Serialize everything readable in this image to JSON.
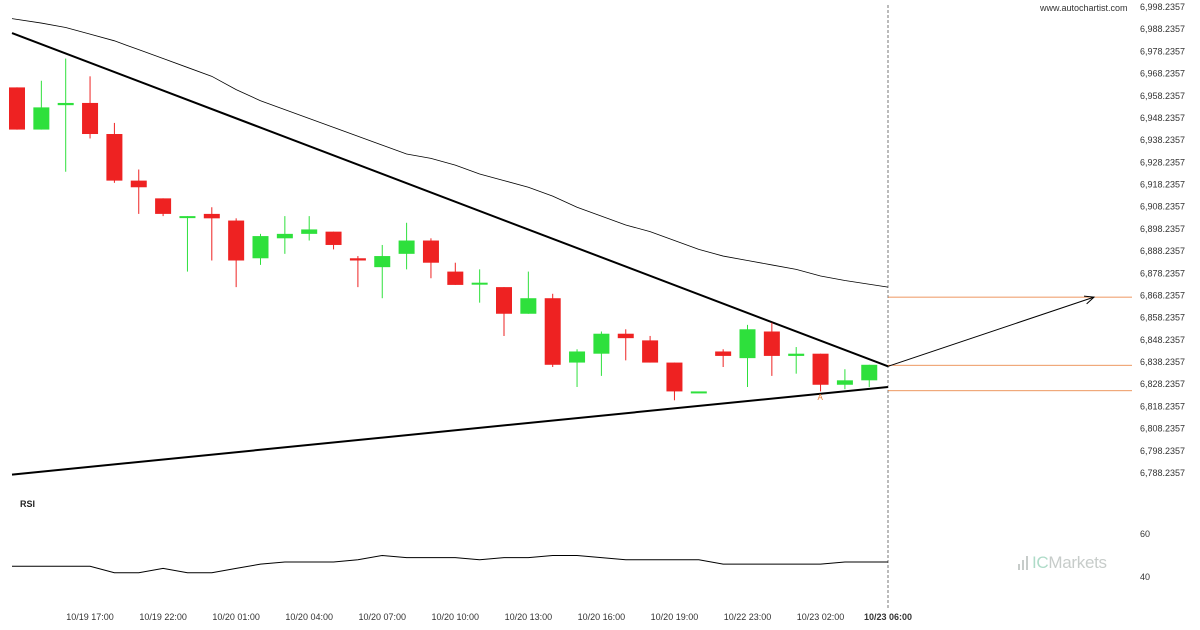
{
  "header": {
    "site": "www.autochartist.com"
  },
  "price_axis_labels": [
    "6,998.2357",
    "6,988.2357",
    "6,978.2357",
    "6,968.2357",
    "6,958.2357",
    "6,948.2357",
    "6,938.2357",
    "6,928.2357",
    "6,918.2357",
    "6,908.2357",
    "6,898.2357",
    "6,888.2357",
    "6,878.2357",
    "6,868.2357",
    "6,858.2357",
    "6,848.2357",
    "6,838.2357",
    "6,828.2357",
    "6,818.2357",
    "6,808.2357",
    "6,798.2357",
    "6,788.2357"
  ],
  "time_labels": [
    "10/19 17:00",
    "10/19 22:00",
    "10/20 01:00",
    "10/20 04:00",
    "10/20 07:00",
    "10/20 10:00",
    "10/20 13:00",
    "10/20 16:00",
    "10/20 19:00",
    "10/22 23:00",
    "10/23 02:00",
    "10/23 06:00"
  ],
  "rsi": {
    "label": "RSI",
    "levels": [
      "60",
      "40"
    ]
  },
  "pattern_point_label": "A",
  "brand": {
    "prefix": "IC",
    "suffix": "Markets"
  },
  "colors": {
    "up": "#2ee03c",
    "down": "#ee2222",
    "forecast": "#e8762c",
    "line": "#000000",
    "background": "#ffffff"
  },
  "chart_data": {
    "type": "candlestick",
    "title": "",
    "price_range": [
      6788.2357,
      6998.2357
    ],
    "candles": [
      {
        "o": 6962,
        "h": 6962,
        "l": 6943,
        "c": 6943
      },
      {
        "o": 6943,
        "h": 6965,
        "l": 6943,
        "c": 6953
      },
      {
        "o": 6954,
        "h": 6975,
        "l": 6924,
        "c": 6955
      },
      {
        "o": 6955,
        "h": 6967,
        "l": 6939,
        "c": 6941
      },
      {
        "o": 6941,
        "h": 6946,
        "l": 6919,
        "c": 6920
      },
      {
        "o": 6920,
        "h": 6925,
        "l": 6905,
        "c": 6917
      },
      {
        "o": 6912,
        "h": 6912,
        "l": 6904,
        "c": 6905
      },
      {
        "o": 6904,
        "h": 6904,
        "l": 6879,
        "c": 6904
      },
      {
        "o": 6905,
        "h": 6908,
        "l": 6884,
        "c": 6903
      },
      {
        "o": 6902,
        "h": 6903,
        "l": 6872,
        "c": 6884
      },
      {
        "o": 6885,
        "h": 6896,
        "l": 6882,
        "c": 6895
      },
      {
        "o": 6894,
        "h": 6904,
        "l": 6887,
        "c": 6896
      },
      {
        "o": 6896,
        "h": 6904,
        "l": 6893,
        "c": 6898
      },
      {
        "o": 6897,
        "h": 6897,
        "l": 6889,
        "c": 6891
      },
      {
        "o": 6885,
        "h": 6886,
        "l": 6872,
        "c": 6884
      },
      {
        "o": 6881,
        "h": 6891,
        "l": 6867,
        "c": 6886
      },
      {
        "o": 6887,
        "h": 6901,
        "l": 6880,
        "c": 6893
      },
      {
        "o": 6893,
        "h": 6894,
        "l": 6876,
        "c": 6883
      },
      {
        "o": 6879,
        "h": 6883,
        "l": 6873,
        "c": 6873
      },
      {
        "o": 6874,
        "h": 6880,
        "l": 6865,
        "c": 6874
      },
      {
        "o": 6872,
        "h": 6872,
        "l": 6850,
        "c": 6860
      },
      {
        "o": 6860,
        "h": 6879,
        "l": 6860,
        "c": 6867
      },
      {
        "o": 6867,
        "h": 6869,
        "l": 6836,
        "c": 6837
      },
      {
        "o": 6838,
        "h": 6844,
        "l": 6827,
        "c": 6843
      },
      {
        "o": 6842,
        "h": 6852,
        "l": 6832,
        "c": 6851
      },
      {
        "o": 6851,
        "h": 6853,
        "l": 6839,
        "c": 6849
      },
      {
        "o": 6848,
        "h": 6850,
        "l": 6838,
        "c": 6838
      },
      {
        "o": 6838,
        "h": 6838,
        "l": 6821,
        "c": 6825
      },
      {
        "o": 6825,
        "h": 6825,
        "l": 6825,
        "c": 6825
      },
      {
        "o": 6843,
        "h": 6844,
        "l": 6836,
        "c": 6841
      },
      {
        "o": 6840,
        "h": 6855,
        "l": 6827,
        "c": 6853
      },
      {
        "o": 6852,
        "h": 6856,
        "l": 6832,
        "c": 6841
      },
      {
        "o": 6841,
        "h": 6845,
        "l": 6833,
        "c": 6842
      },
      {
        "o": 6842,
        "h": 6842,
        "l": 6825,
        "c": 6828
      },
      {
        "o": 6828,
        "h": 6835,
        "l": 6826,
        "c": 6830
      },
      {
        "o": 6830,
        "h": 6837,
        "l": 6827,
        "c": 6837
      }
    ],
    "moving_average": [
      6993,
      6991,
      6989,
      6986,
      6983,
      6979,
      6975,
      6971,
      6967,
      6961,
      6956,
      6952,
      6948,
      6944,
      6940,
      6936,
      6932,
      6930,
      6927,
      6923,
      6920,
      6917,
      6913,
      6908,
      6904,
      6900,
      6897,
      6893,
      6889,
      6886,
      6884,
      6882,
      6880,
      6877,
      6875,
      6872
    ],
    "upper_trendline": [
      6986.5,
      6836.3
    ],
    "lower_trendline": [
      6787.5,
      6827.0
    ],
    "forecast": {
      "from": 6836.3,
      "to": 6867.5
    },
    "levels": [
      6867.5,
      6836.8,
      6825.3
    ],
    "rsi_values": [
      45,
      45,
      45,
      45,
      42,
      42,
      44,
      42,
      42,
      44,
      46,
      47,
      47,
      47,
      48,
      50,
      49,
      49,
      49,
      48,
      49,
      49,
      50,
      50,
      49,
      48,
      48,
      48,
      48,
      46,
      46,
      46,
      46,
      46,
      47,
      47
    ],
    "rsi_range": [
      30,
      70
    ]
  }
}
